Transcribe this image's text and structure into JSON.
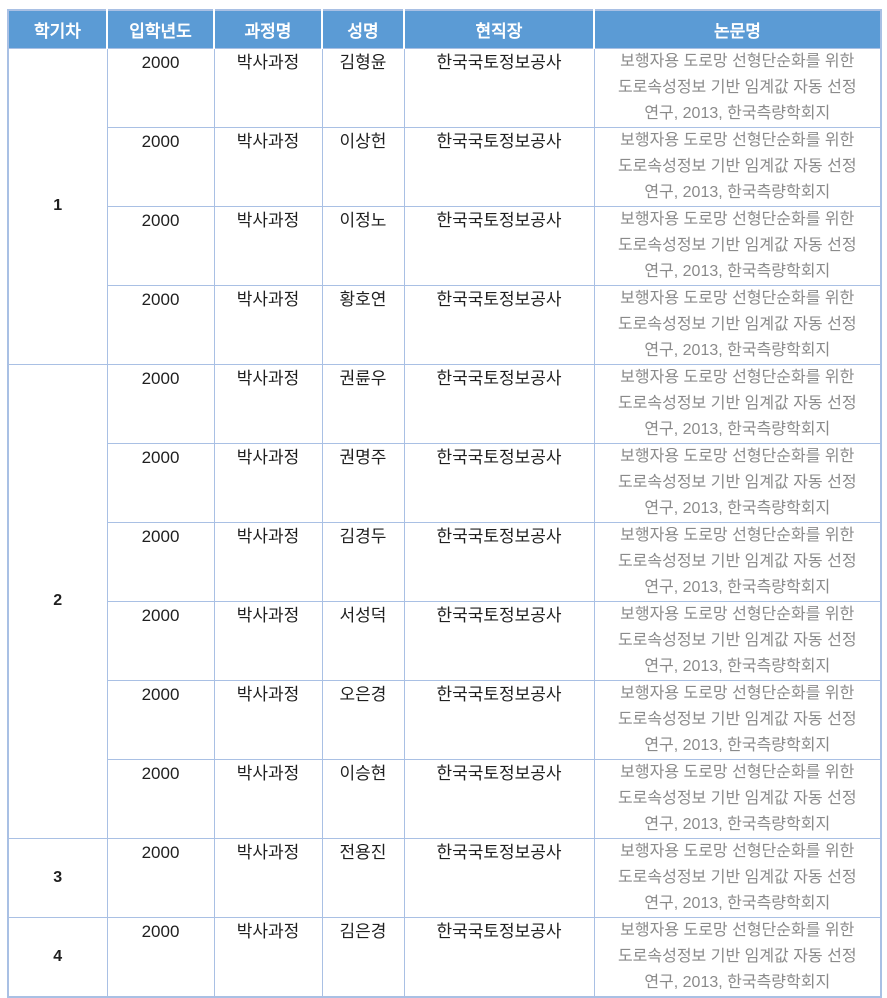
{
  "colors": {
    "header_bg": "#5B9BD5",
    "header_text": "#FFFFFF",
    "border": "#A9C0E4",
    "body_text": "#1F1F1F",
    "thesis_text": "#8A8A8A"
  },
  "table": {
    "columns": [
      {
        "key": "semester",
        "label": "학기차"
      },
      {
        "key": "year",
        "label": "입학년도"
      },
      {
        "key": "course",
        "label": "과정명"
      },
      {
        "key": "name",
        "label": "성명"
      },
      {
        "key": "workplace",
        "label": "현직장"
      },
      {
        "key": "thesis",
        "label": "논문명"
      }
    ],
    "thesis_full": "보행자용 도로망 선형단순화를 위한 도로속성정보 기반 임계값 자동 선정 연구, 2013, 한국측량학회지",
    "groups": [
      {
        "semester": "1",
        "rows": [
          {
            "year": "2000",
            "course": "박사과정",
            "name": "김형윤",
            "workplace": "한국국토정보공사",
            "thesis_lines": [
              "보행자용 도로망 선형단순화를 위한",
              "도로속성정보 기반 임계값 자동 선정",
              "연구, 2013, 한국측량학회지"
            ]
          },
          {
            "year": "2000",
            "course": "박사과정",
            "name": "이상헌",
            "workplace": "한국국토정보공사",
            "thesis_lines": [
              "보행자용 도로망 선형단순화를 위한",
              "도로속성정보 기반 임계값 자동 선정",
              "연구, 2013, 한국측량학회지"
            ]
          },
          {
            "year": "2000",
            "course": "박사과정",
            "name": "이정노",
            "workplace": "한국국토정보공사",
            "thesis_lines": [
              "보행자용 도로망 선형단순화를 위한",
              "도로속성정보 기반 임계값 자동 선정",
              "연구, 2013, 한국측량학회지"
            ]
          },
          {
            "year": "2000",
            "course": "박사과정",
            "name": "황호연",
            "workplace": "한국국토정보공사",
            "thesis_lines": [
              "보행자용 도로망 선형단순화를 위한",
              "도로속성정보 기반 임계값 자동 선정",
              "연구, 2013, 한국측량학회지"
            ]
          }
        ]
      },
      {
        "semester": "2",
        "rows": [
          {
            "year": "2000",
            "course": "박사과정",
            "name": "권륜우",
            "workplace": "한국국토정보공사",
            "thesis_lines": [
              "보행자용 도로망 선형단순화를 위한",
              "도로속성정보 기반 임계값 자동 선정",
              "연구, 2013, 한국측량학회지"
            ]
          },
          {
            "year": "2000",
            "course": "박사과정",
            "name": "권명주",
            "workplace": "한국국토정보공사",
            "thesis_lines": [
              "보행자용 도로망 선형단순화를 위한",
              "도로속성정보 기반 임계값 자동 선정",
              "연구, 2013, 한국측량학회지"
            ]
          },
          {
            "year": "2000",
            "course": "박사과정",
            "name": "김경두",
            "workplace": "한국국토정보공사",
            "thesis_lines": [
              "보행자용 도로망 선형단순화를 위한",
              "도로속성정보 기반 임계값 자동 선정",
              "연구, 2013, 한국측량학회지"
            ]
          },
          {
            "year": "2000",
            "course": "박사과정",
            "name": "서성덕",
            "workplace": "한국국토정보공사",
            "thesis_lines": [
              "보행자용 도로망 선형단순화를 위한",
              "도로속성정보 기반 임계값 자동 선정",
              "연구, 2013, 한국측량학회지"
            ]
          },
          {
            "year": "2000",
            "course": "박사과정",
            "name": "오은경",
            "workplace": "한국국토정보공사",
            "thesis_lines": [
              "보행자용 도로망 선형단순화를 위한",
              "도로속성정보 기반 임계값 자동 선정",
              "연구, 2013, 한국측량학회지"
            ]
          },
          {
            "year": "2000",
            "course": "박사과정",
            "name": "이승현",
            "workplace": "한국국토정보공사",
            "thesis_lines": [
              "보행자용 도로망 선형단순화를 위한",
              "도로속성정보 기반 임계값 자동 선정",
              "연구, 2013, 한국측량학회지"
            ]
          }
        ]
      },
      {
        "semester": "3",
        "rows": [
          {
            "year": "2000",
            "course": "박사과정",
            "name": "전용진",
            "workplace": "한국국토정보공사",
            "thesis_lines": [
              "보행자용 도로망 선형단순화를 위한",
              "도로속성정보 기반 임계값 자동 선정",
              "연구, 2013, 한국측량학회지"
            ]
          }
        ]
      },
      {
        "semester": "4",
        "rows": [
          {
            "year": "2000",
            "course": "박사과정",
            "name": "김은경",
            "workplace": "한국국토정보공사",
            "thesis_lines": [
              "보행자용 도로망 선형단순화를 위한",
              "도로속성정보 기반 임계값 자동 선정",
              "연구, 2013, 한국측량학회지"
            ]
          }
        ]
      }
    ]
  }
}
